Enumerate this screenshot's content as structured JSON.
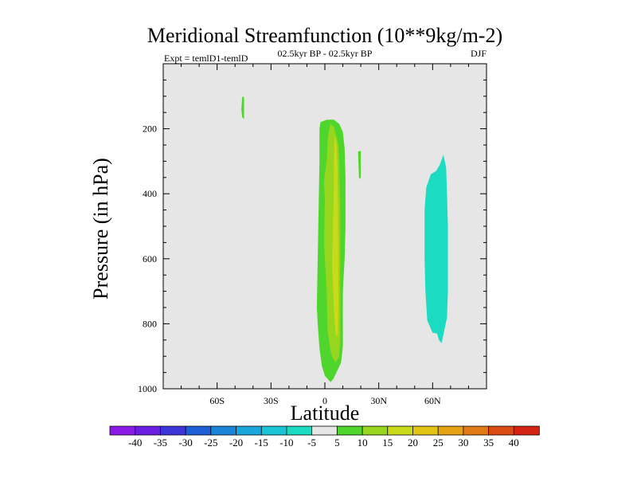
{
  "chart_data": {
    "type": "contour",
    "title": "Meridional Streamfunction (10**9kg/m-2)",
    "subtitle": "02.5kyr BP - 02.5kyr BP",
    "left_label": "Expt = temlD1-temlD",
    "right_label": "DJF",
    "xlabel": "Latitude",
    "ylabel": "Pressure (in hPa)",
    "xlim": [
      -90,
      90
    ],
    "ylim": [
      1000,
      0
    ],
    "y_inverted": true,
    "x_ticks": [
      {
        "value": -60,
        "label": "60S"
      },
      {
        "value": -30,
        "label": "30S"
      },
      {
        "value": 0,
        "label": "0"
      },
      {
        "value": 30,
        "label": "30N"
      },
      {
        "value": 60,
        "label": "60N"
      }
    ],
    "y_ticks": [
      {
        "value": 200,
        "label": "200"
      },
      {
        "value": 400,
        "label": "400"
      },
      {
        "value": 600,
        "label": "600"
      },
      {
        "value": 800,
        "label": "800"
      },
      {
        "value": 1000,
        "label": "1000"
      }
    ],
    "background_fill": "#e6e6e6",
    "contour_levels": [
      -40,
      -35,
      -30,
      -25,
      -20,
      -15,
      -10,
      -5,
      5,
      10,
      15,
      20,
      25,
      30,
      35,
      40
    ],
    "colorbar_colors": [
      "#8b1ae6",
      "#6a1ee0",
      "#3c35d8",
      "#1f5fd6",
      "#1a84d9",
      "#19a6dc",
      "#1ac4d6",
      "#1bdcc0",
      "#e6e6e6",
      "#4ed62d",
      "#96d61e",
      "#c8da1a",
      "#e2c415",
      "#e5a213",
      "#e17a12",
      "#db4a12",
      "#d42312"
    ],
    "regions": [
      {
        "name": "positive-5-10-tropics",
        "level": "5 to 10",
        "color": "#4ed62d",
        "polygon": [
          [
            -2.5,
            180
          ],
          [
            -1,
            180
          ],
          [
            2,
            215
          ],
          [
            4,
            350
          ],
          [
            3,
            500
          ],
          [
            4,
            660
          ],
          [
            5,
            760
          ],
          [
            5.5,
            930
          ],
          [
            4.7,
            970
          ],
          [
            3.2,
            980
          ],
          [
            0,
            960
          ],
          [
            -1.7,
            930
          ],
          [
            -3,
            875
          ],
          [
            -4,
            800
          ],
          [
            -4.5,
            750
          ],
          [
            -3,
            300
          ],
          [
            -3,
            200
          ],
          [
            -2.5,
            180
          ],
          [
            1,
            172
          ],
          [
            5,
            172
          ],
          [
            8,
            185
          ],
          [
            10,
            210
          ],
          [
            11,
            260
          ],
          [
            11.5,
            350
          ],
          [
            11.5,
            500
          ],
          [
            11,
            600
          ],
          [
            10,
            700
          ],
          [
            10,
            800
          ],
          [
            10,
            870
          ],
          [
            9,
            920
          ],
          [
            6,
            955
          ],
          [
            4.7,
            970
          ]
        ]
      },
      {
        "name": "positive-10-15-tropics",
        "level": "10 to 15",
        "color": "#96d61e",
        "polygon": [
          [
            2,
            215
          ],
          [
            3,
            185
          ],
          [
            5,
            195
          ],
          [
            6,
            215
          ],
          [
            7.5,
            250
          ],
          [
            8,
            300
          ],
          [
            8.5,
            450
          ],
          [
            8.5,
            550
          ],
          [
            8.5,
            650
          ],
          [
            8.5,
            750
          ],
          [
            8.5,
            850
          ],
          [
            8,
            900
          ],
          [
            6,
            920
          ],
          [
            4,
            900
          ],
          [
            3,
            880
          ],
          [
            1.5,
            820
          ],
          [
            1,
            700
          ],
          [
            -0.5,
            550
          ],
          [
            0,
            420
          ],
          [
            -0.5,
            360
          ],
          [
            1,
            300
          ],
          [
            1.5,
            240
          ],
          [
            2,
            215
          ]
        ]
      },
      {
        "name": "positive-15-20-core",
        "level": "15 to 20",
        "color": "#c8da1a",
        "polygon": [
          [
            5.5,
            220
          ],
          [
            6.5,
            250
          ],
          [
            7,
            320
          ],
          [
            7.3,
            450
          ],
          [
            7.5,
            600
          ],
          [
            7.5,
            750
          ],
          [
            7.3,
            830
          ],
          [
            6.2,
            840
          ],
          [
            5.5,
            800
          ],
          [
            5,
            750
          ],
          [
            4.5,
            680
          ],
          [
            4,
            620
          ],
          [
            4.5,
            500
          ],
          [
            5,
            380
          ],
          [
            5,
            300
          ],
          [
            5.5,
            220
          ]
        ]
      },
      {
        "name": "positive-5-10-upper-south",
        "level": "5 to 10",
        "color": "#4ed62d",
        "polygon": [
          [
            -46,
            102
          ],
          [
            -45,
            102
          ],
          [
            -45,
            170
          ],
          [
            -46,
            165
          ],
          [
            -46.5,
            140
          ],
          [
            -46,
            102
          ]
        ]
      },
      {
        "name": "positive-5-10-subtropics-north",
        "level": "5 to 10",
        "color": "#4ed62d",
        "polygon": [
          [
            18.5,
            270
          ],
          [
            20,
            268
          ],
          [
            20,
            350
          ],
          [
            19,
            355
          ],
          [
            18.8,
            320
          ],
          [
            18.5,
            270
          ]
        ]
      },
      {
        "name": "negative-5-10-north",
        "level": "-10 to -5",
        "color": "#1bdcc0",
        "polygon": [
          [
            66,
            280
          ],
          [
            67.5,
            320
          ],
          [
            68,
            400
          ],
          [
            68.5,
            500
          ],
          [
            68.5,
            600
          ],
          [
            68.5,
            700
          ],
          [
            68,
            780
          ],
          [
            66.5,
            820
          ],
          [
            65,
            860
          ],
          [
            63.5,
            850
          ],
          [
            62.5,
            830
          ],
          [
            60,
            828
          ],
          [
            57,
            790
          ],
          [
            56,
            700
          ],
          [
            55.5,
            600
          ],
          [
            55.5,
            450
          ],
          [
            56.5,
            380
          ],
          [
            59,
            340
          ],
          [
            62,
            330
          ],
          [
            64,
            310
          ],
          [
            66,
            280
          ]
        ]
      }
    ]
  }
}
